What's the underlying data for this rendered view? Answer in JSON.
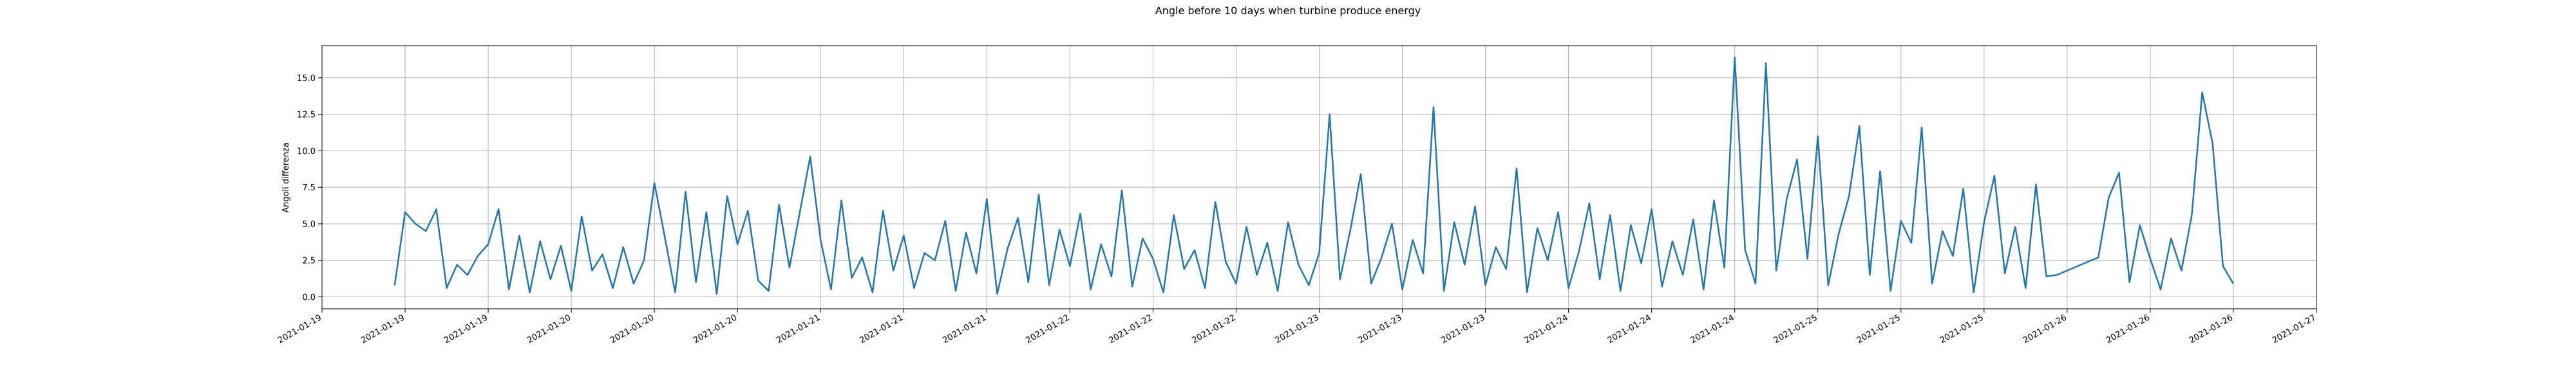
{
  "chart_data": {
    "type": "line",
    "title": "Angle before 10 days when turbine produce energy",
    "y_label": "Angoli differenza",
    "color": "#1f77b4",
    "grid": true,
    "xlim": [
      "2021-01-19 00:00",
      "2021-01-27 00:00"
    ],
    "xticks": [
      {
        "value": "2021-01-19 00:00",
        "label": "2021-01-19"
      },
      {
        "value": "2021-01-19 08:00",
        "label": "2021-01-19"
      },
      {
        "value": "2021-01-19 16:00",
        "label": "2021-01-19"
      },
      {
        "value": "2021-01-20 00:00",
        "label": "2021-01-20"
      },
      {
        "value": "2021-01-20 08:00",
        "label": "2021-01-20"
      },
      {
        "value": "2021-01-20 16:00",
        "label": "2021-01-20"
      },
      {
        "value": "2021-01-21 00:00",
        "label": "2021-01-21"
      },
      {
        "value": "2021-01-21 08:00",
        "label": "2021-01-21"
      },
      {
        "value": "2021-01-21 16:00",
        "label": "2021-01-21"
      },
      {
        "value": "2021-01-22 00:00",
        "label": "2021-01-22"
      },
      {
        "value": "2021-01-22 08:00",
        "label": "2021-01-22"
      },
      {
        "value": "2021-01-22 16:00",
        "label": "2021-01-22"
      },
      {
        "value": "2021-01-23 00:00",
        "label": "2021-01-23"
      },
      {
        "value": "2021-01-23 08:00",
        "label": "2021-01-23"
      },
      {
        "value": "2021-01-23 16:00",
        "label": "2021-01-23"
      },
      {
        "value": "2021-01-24 00:00",
        "label": "2021-01-24"
      },
      {
        "value": "2021-01-24 08:00",
        "label": "2021-01-24"
      },
      {
        "value": "2021-01-24 16:00",
        "label": "2021-01-24"
      },
      {
        "value": "2021-01-25 00:00",
        "label": "2021-01-25"
      },
      {
        "value": "2021-01-25 08:00",
        "label": "2021-01-25"
      },
      {
        "value": "2021-01-25 16:00",
        "label": "2021-01-25"
      },
      {
        "value": "2021-01-26 00:00",
        "label": "2021-01-26"
      },
      {
        "value": "2021-01-26 08:00",
        "label": "2021-01-26"
      },
      {
        "value": "2021-01-26 16:00",
        "label": "2021-01-26"
      },
      {
        "value": "2021-01-27 00:00",
        "label": "2021-01-27"
      }
    ],
    "ylim": [
      -0.82,
      17.2
    ],
    "yticks": [
      {
        "value": 0,
        "label": "0.0"
      },
      {
        "value": 2.5,
        "label": "2.5"
      },
      {
        "value": 5,
        "label": "5.0"
      },
      {
        "value": 7.5,
        "label": "7.5"
      },
      {
        "value": 10,
        "label": "10.0"
      },
      {
        "value": 12.5,
        "label": "12.5"
      },
      {
        "value": 15,
        "label": "15.0"
      }
    ],
    "x": [
      "2021-01-19 07:00",
      "2021-01-19 08:00",
      "2021-01-19 09:00",
      "2021-01-19 10:00",
      "2021-01-19 11:00",
      "2021-01-19 12:00",
      "2021-01-19 13:00",
      "2021-01-19 14:00",
      "2021-01-19 15:00",
      "2021-01-19 16:00",
      "2021-01-19 17:00",
      "2021-01-19 18:00",
      "2021-01-19 19:00",
      "2021-01-19 20:00",
      "2021-01-19 21:00",
      "2021-01-19 22:00",
      "2021-01-19 23:00",
      "2021-01-20 00:00",
      "2021-01-20 01:00",
      "2021-01-20 02:00",
      "2021-01-20 03:00",
      "2021-01-20 04:00",
      "2021-01-20 05:00",
      "2021-01-20 06:00",
      "2021-01-20 07:00",
      "2021-01-20 08:00",
      "2021-01-20 09:00",
      "2021-01-20 10:00",
      "2021-01-20 11:00",
      "2021-01-20 12:00",
      "2021-01-20 13:00",
      "2021-01-20 14:00",
      "2021-01-20 15:00",
      "2021-01-20 16:00",
      "2021-01-20 17:00",
      "2021-01-20 18:00",
      "2021-01-20 19:00",
      "2021-01-20 20:00",
      "2021-01-20 21:00",
      "2021-01-20 22:00",
      "2021-01-20 23:00",
      "2021-01-21 00:00",
      "2021-01-21 01:00",
      "2021-01-21 02:00",
      "2021-01-21 03:00",
      "2021-01-21 04:00",
      "2021-01-21 05:00",
      "2021-01-21 06:00",
      "2021-01-21 07:00",
      "2021-01-21 08:00",
      "2021-01-21 09:00",
      "2021-01-21 10:00",
      "2021-01-21 11:00",
      "2021-01-21 12:00",
      "2021-01-21 13:00",
      "2021-01-21 14:00",
      "2021-01-21 15:00",
      "2021-01-21 16:00",
      "2021-01-21 17:00",
      "2021-01-21 18:00",
      "2021-01-21 19:00",
      "2021-01-21 20:00",
      "2021-01-21 21:00",
      "2021-01-21 22:00",
      "2021-01-21 23:00",
      "2021-01-22 00:00",
      "2021-01-22 01:00",
      "2021-01-22 02:00",
      "2021-01-22 03:00",
      "2021-01-22 04:00",
      "2021-01-22 05:00",
      "2021-01-22 06:00",
      "2021-01-22 07:00",
      "2021-01-22 08:00",
      "2021-01-22 09:00",
      "2021-01-22 10:00",
      "2021-01-22 11:00",
      "2021-01-22 12:00",
      "2021-01-22 13:00",
      "2021-01-22 14:00",
      "2021-01-22 15:00",
      "2021-01-22 16:00",
      "2021-01-22 17:00",
      "2021-01-22 18:00",
      "2021-01-22 19:00",
      "2021-01-22 20:00",
      "2021-01-22 21:00",
      "2021-01-22 22:00",
      "2021-01-22 23:00",
      "2021-01-23 00:00",
      "2021-01-23 01:00",
      "2021-01-23 02:00",
      "2021-01-23 03:00",
      "2021-01-23 04:00",
      "2021-01-23 05:00",
      "2021-01-23 06:00",
      "2021-01-23 07:00",
      "2021-01-23 08:00",
      "2021-01-23 09:00",
      "2021-01-23 10:00",
      "2021-01-23 11:00",
      "2021-01-23 12:00",
      "2021-01-23 13:00",
      "2021-01-23 14:00",
      "2021-01-23 15:00",
      "2021-01-23 16:00",
      "2021-01-23 17:00",
      "2021-01-23 18:00",
      "2021-01-23 19:00",
      "2021-01-23 20:00",
      "2021-01-23 21:00",
      "2021-01-23 22:00",
      "2021-01-23 23:00",
      "2021-01-24 00:00",
      "2021-01-24 01:00",
      "2021-01-24 02:00",
      "2021-01-24 03:00",
      "2021-01-24 04:00",
      "2021-01-24 05:00",
      "2021-01-24 06:00",
      "2021-01-24 07:00",
      "2021-01-24 08:00",
      "2021-01-24 09:00",
      "2021-01-24 10:00",
      "2021-01-24 11:00",
      "2021-01-24 12:00",
      "2021-01-24 13:00",
      "2021-01-24 14:00",
      "2021-01-24 15:00",
      "2021-01-24 16:00",
      "2021-01-24 17:00",
      "2021-01-24 18:00",
      "2021-01-24 19:00",
      "2021-01-24 20:00",
      "2021-01-24 21:00",
      "2021-01-24 22:00",
      "2021-01-24 23:00",
      "2021-01-25 00:00",
      "2021-01-25 01:00",
      "2021-01-25 02:00",
      "2021-01-25 03:00",
      "2021-01-25 04:00",
      "2021-01-25 05:00",
      "2021-01-25 06:00",
      "2021-01-25 07:00",
      "2021-01-25 08:00",
      "2021-01-25 09:00",
      "2021-01-25 10:00",
      "2021-01-25 11:00",
      "2021-01-25 12:00",
      "2021-01-25 13:00",
      "2021-01-25 14:00",
      "2021-01-25 15:00",
      "2021-01-25 16:00",
      "2021-01-25 17:00",
      "2021-01-25 18:00",
      "2021-01-25 19:00",
      "2021-01-25 20:00",
      "2021-01-25 21:00",
      "2021-01-25 22:00",
      "2021-01-25 23:00",
      "2021-01-26 03:00",
      "2021-01-26 04:00",
      "2021-01-26 05:00",
      "2021-01-26 06:00",
      "2021-01-26 07:00",
      "2021-01-26 08:00",
      "2021-01-26 09:00",
      "2021-01-26 10:00",
      "2021-01-26 11:00",
      "2021-01-26 12:00",
      "2021-01-26 13:00",
      "2021-01-26 14:00",
      "2021-01-26 15:00",
      "2021-01-26 16:00"
    ],
    "values": [
      0.8,
      5.8,
      5.0,
      4.5,
      6.0,
      0.6,
      2.2,
      1.5,
      2.8,
      3.6,
      6.0,
      0.5,
      4.2,
      0.3,
      3.8,
      1.2,
      3.5,
      0.4,
      5.5,
      1.8,
      2.9,
      0.6,
      3.4,
      0.9,
      2.5,
      7.8,
      4.1,
      0.3,
      7.2,
      1.0,
      5.8,
      0.2,
      6.9,
      3.6,
      5.9,
      1.1,
      0.4,
      6.3,
      2.0,
      5.8,
      9.6,
      3.9,
      0.5,
      6.6,
      1.3,
      2.7,
      0.3,
      5.9,
      1.8,
      4.2,
      0.6,
      3.0,
      2.5,
      5.2,
      0.4,
      4.4,
      1.6,
      6.7,
      0.2,
      3.3,
      5.4,
      1.0,
      7.0,
      0.8,
      4.6,
      2.1,
      5.7,
      0.5,
      3.6,
      1.4,
      7.3,
      0.7,
      4.0,
      2.6,
      0.3,
      5.6,
      1.9,
      3.2,
      0.6,
      6.5,
      2.4,
      0.9,
      4.8,
      1.5,
      3.7,
      0.4,
      5.1,
      2.2,
      0.8,
      3.0,
      12.5,
      1.2,
      4.6,
      8.4,
      0.9,
      2.7,
      5.0,
      0.5,
      3.9,
      1.6,
      13.0,
      0.4,
      5.1,
      2.2,
      6.2,
      0.8,
      3.4,
      1.9,
      8.8,
      0.3,
      4.7,
      2.5,
      5.8,
      0.6,
      3.1,
      6.4,
      1.2,
      5.6,
      0.4,
      4.9,
      2.3,
      6.0,
      0.7,
      3.8,
      1.5,
      5.3,
      0.5,
      6.6,
      2.0,
      16.4,
      3.2,
      0.9,
      16.0,
      1.8,
      6.7,
      9.4,
      2.6,
      11.0,
      0.8,
      4.3,
      6.9,
      11.7,
      1.5,
      8.6,
      0.4,
      5.2,
      3.7,
      11.6,
      0.9,
      4.5,
      2.8,
      7.4,
      0.3,
      5.1,
      8.3,
      1.6,
      4.8,
      0.6,
      7.7,
      1.4,
      1.5,
      2.7,
      6.8,
      8.5,
      1.0,
      4.9,
      2.6,
      0.5,
      4.0,
      1.8,
      5.6,
      14.0,
      10.5,
      2.1,
      0.9
    ]
  }
}
